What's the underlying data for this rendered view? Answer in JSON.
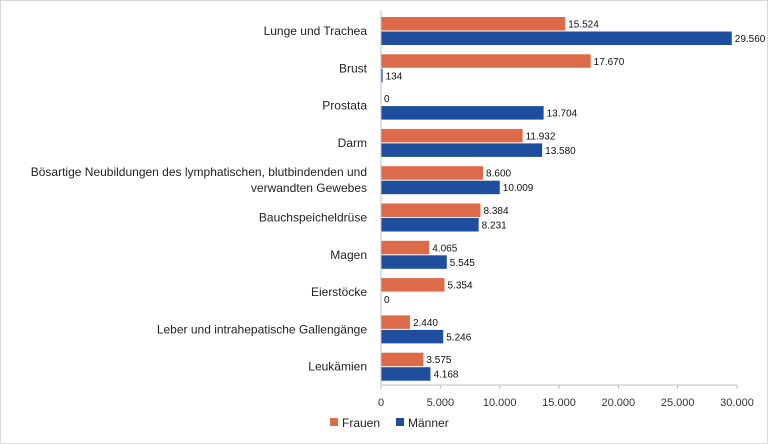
{
  "chart_data": {
    "type": "bar",
    "orientation": "horizontal",
    "title": "",
    "xlabel": "",
    "ylabel": "",
    "categories": [
      [
        "Lunge und Trachea"
      ],
      [
        "Brust"
      ],
      [
        "Prostata"
      ],
      [
        "Darm"
      ],
      [
        "Bösartige Neubildungen des lymphatischen, blutbindenden und",
        "verwandten Gewebes"
      ],
      [
        "Bauchspeicheldrüse"
      ],
      [
        "Magen"
      ],
      [
        "Eierstöcke"
      ],
      [
        "Leber und intrahepatische Gallengänge"
      ],
      [
        "Leukämien"
      ]
    ],
    "series": [
      {
        "name": "Frauen",
        "color": "#dd6b4a",
        "values": [
          15524,
          17670,
          0,
          11932,
          8600,
          8384,
          4065,
          5354,
          2440,
          3575
        ],
        "labels": [
          "15.524",
          "17.670",
          "0",
          "11.932",
          "8.600",
          "8.384",
          "4.065",
          "5.354",
          "2.440",
          "3.575"
        ]
      },
      {
        "name": "Männer",
        "color": "#1f4e9f",
        "values": [
          29560,
          134,
          13704,
          13580,
          10009,
          8231,
          5545,
          0,
          5246,
          4168
        ],
        "labels": [
          "29.560",
          "134",
          "13.704",
          "13.580",
          "10.009",
          "8.231",
          "5.545",
          "0",
          "5.246",
          "4.168"
        ]
      }
    ],
    "xlim": [
      0,
      30000
    ],
    "x_ticks": [
      0,
      5000,
      10000,
      15000,
      20000,
      25000,
      30000
    ],
    "x_tick_labels": [
      "0",
      "5.000",
      "10.000",
      "15.000",
      "20.000",
      "25.000",
      "30.000"
    ],
    "grid": false,
    "legend_position": "bottom"
  }
}
